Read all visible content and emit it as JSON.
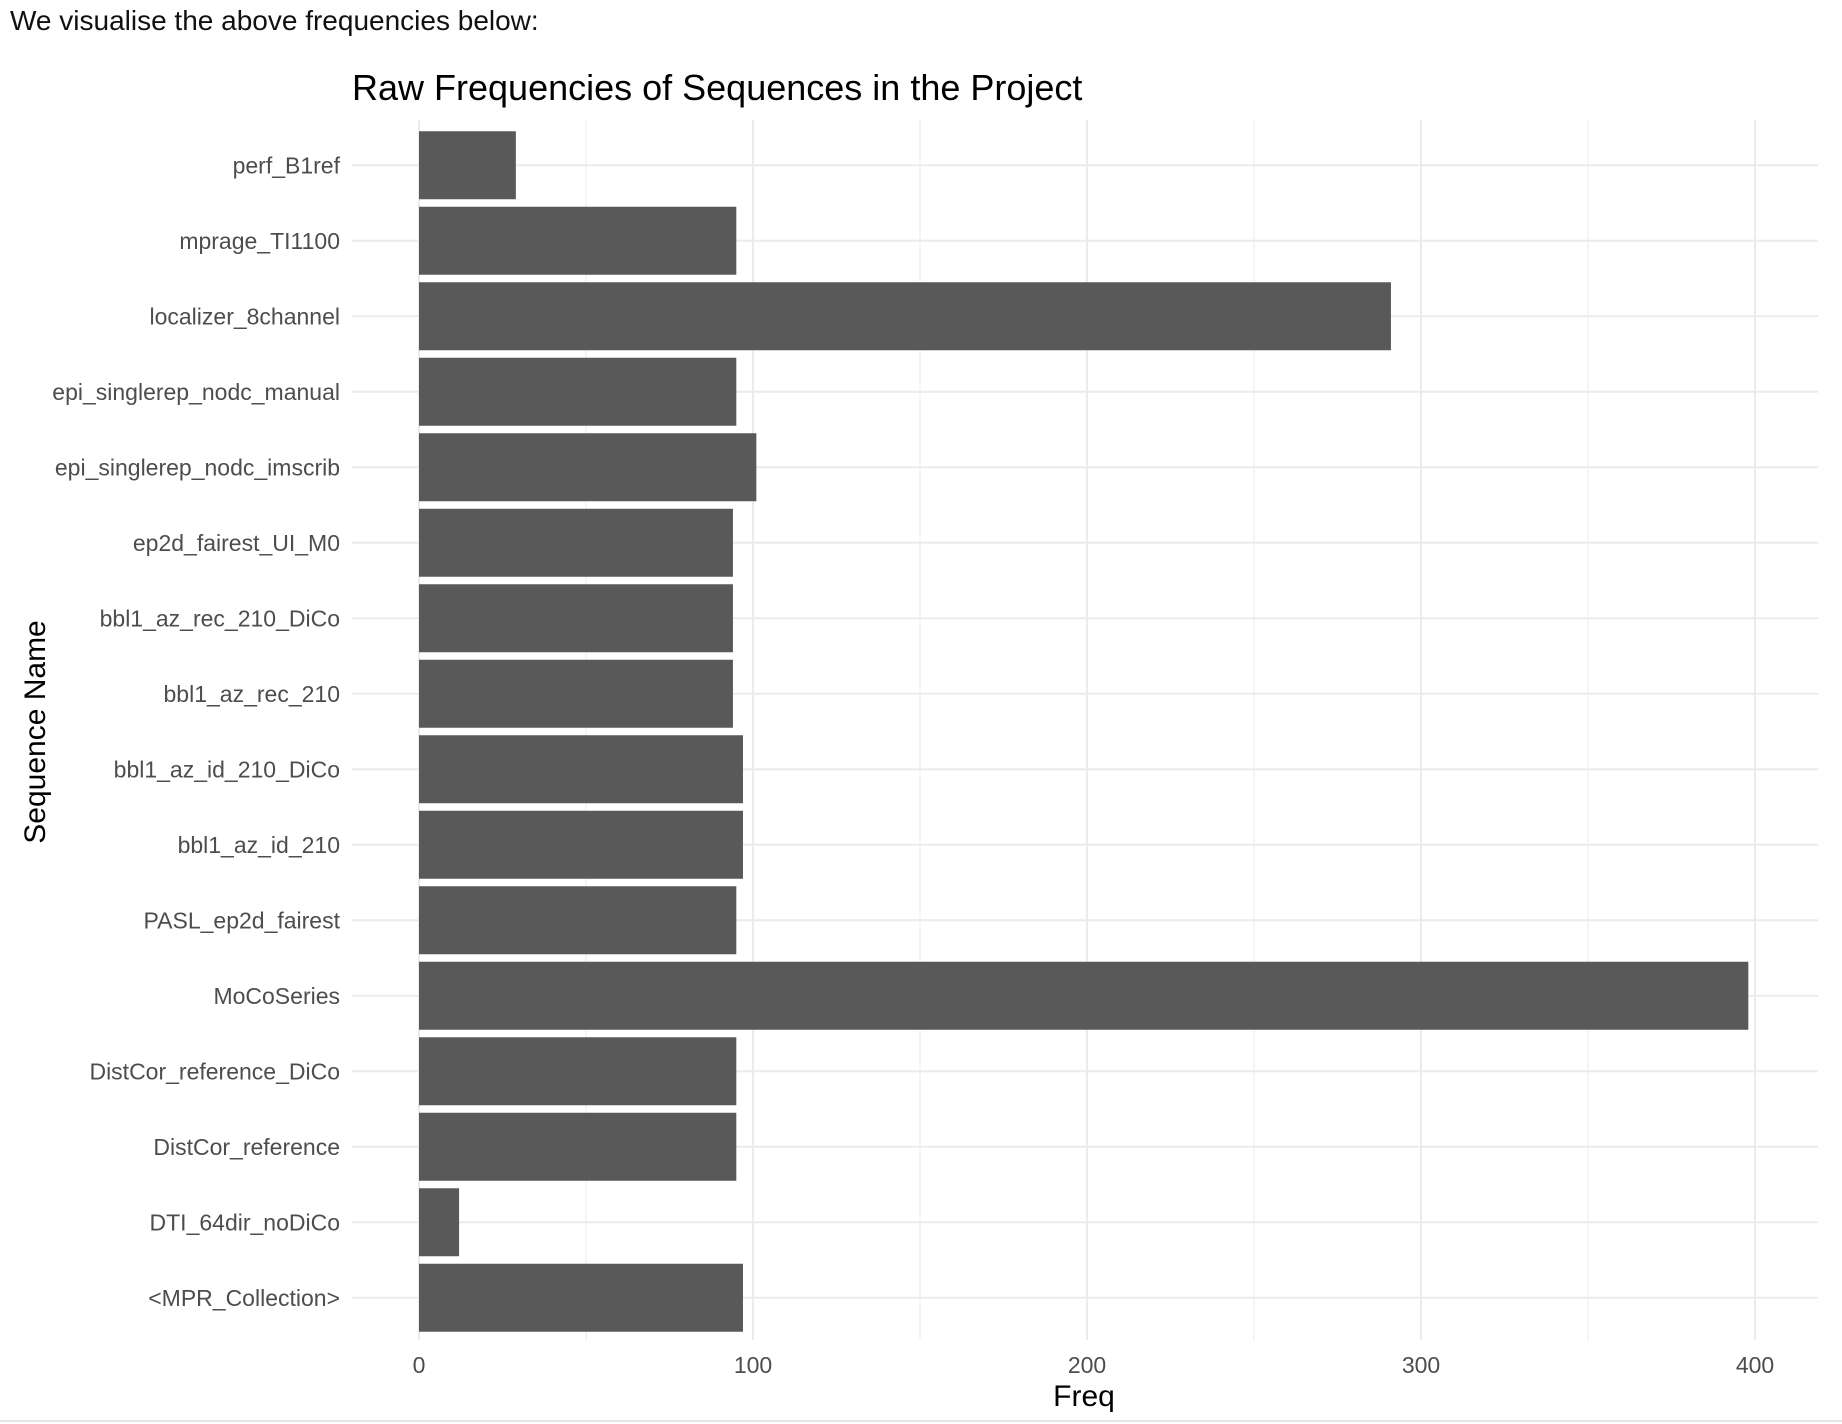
{
  "page": {
    "intro_text": "We visualise the above frequencies below:"
  },
  "chart_data": {
    "type": "bar",
    "orientation": "horizontal",
    "title": "Raw Frequencies of Sequences in the Project",
    "xlabel": "Freq",
    "ylabel": "Sequence Name",
    "xlim": [
      0,
      418
    ],
    "x_ticks": [
      0,
      100,
      200,
      300,
      400
    ],
    "grid": true,
    "bar_color": "#595959",
    "categories": [
      "<MPR_Collection>",
      "DTI_64dir_noDiCo",
      "DistCor_reference",
      "DistCor_reference_DiCo",
      "MoCoSeries",
      "PASL_ep2d_fairest",
      "bbl1_az_id_210",
      "bbl1_az_id_210_DiCo",
      "bbl1_az_rec_210",
      "bbl1_az_rec_210_DiCo",
      "ep2d_fairest_UI_M0",
      "epi_singlerep_nodc_imscrib",
      "epi_singlerep_nodc_manual",
      "localizer_8channel",
      "mprage_TI1100",
      "perf_B1ref"
    ],
    "values": [
      97,
      12,
      95,
      95,
      398,
      95,
      97,
      97,
      94,
      94,
      94,
      101,
      95,
      291,
      95,
      29
    ]
  }
}
